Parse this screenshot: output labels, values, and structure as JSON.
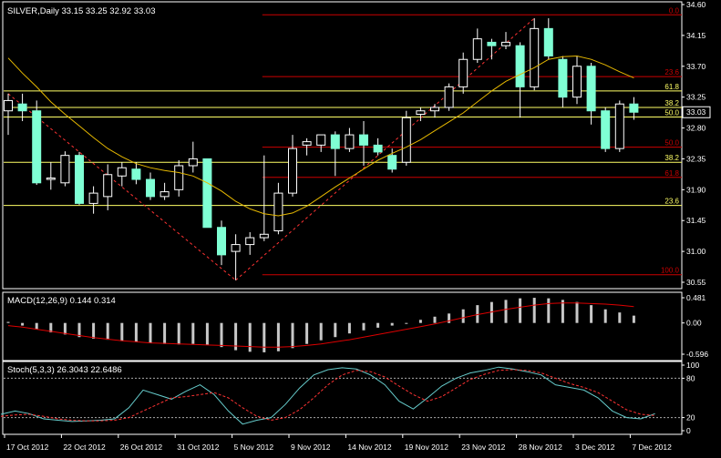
{
  "header": {
    "main_label": "SILVER,Daily  33.15 33.25 32.92 33.03",
    "macd_label": "MACD(12,26,9) 0.144 0.314",
    "stoch_label": "Stoch(5,3,3) 26.3043 22.6486"
  },
  "colors": {
    "background": "#000000",
    "frame": "#ffffff",
    "candle_up": "#ffffff",
    "candle_down": "#7fffd4",
    "ma_line": "#e6b800",
    "fib_red": "#cc0000",
    "fib_yellow": "#ffff66",
    "trend_dashed": "#ff3333",
    "macd_hist": "#c8c8c8",
    "macd_signal": "#dd0000",
    "stoch_main": "#66cccc",
    "stoch_signal": "#ff3333",
    "price_box": "#ffffff",
    "axis_text": "#ffffff"
  },
  "chart_data": [
    {
      "type": "candlestick",
      "symbol": "SILVER",
      "timeframe": "Daily",
      "y_ticks": [
        34.6,
        34.15,
        33.7,
        33.25,
        32.8,
        32.35,
        31.9,
        31.45,
        31.0,
        30.55
      ],
      "y_tick_labels": [
        "34.60",
        "34.15",
        "33.70",
        "33.25",
        "32.80",
        "32.35",
        "31.90",
        "31.45",
        "31.00",
        "30.55"
      ],
      "ylim": [
        30.55,
        34.6
      ],
      "x_labels": [
        "17 Oct 2012",
        "22 Oct 2012",
        "26 Oct 2012",
        "31 Oct 2012",
        "5 Nov 2012",
        "9 Nov 2012",
        "14 Nov 2012",
        "19 Nov 2012",
        "23 Nov 2012",
        "28 Nov 2012",
        "3 Dec 2012",
        "7 Dec 2012"
      ],
      "x_label_index": [
        0,
        4,
        8,
        12,
        16,
        20,
        24,
        28,
        32,
        36,
        40,
        44
      ],
      "current_price": "33.03",
      "candles": [
        {
          "o": 33.05,
          "h": 33.3,
          "l": 32.7,
          "c": 33.2
        },
        {
          "o": 33.15,
          "h": 33.3,
          "l": 32.9,
          "c": 33.05
        },
        {
          "o": 33.05,
          "h": 33.2,
          "l": 31.97,
          "c": 32.0
        },
        {
          "o": 32.05,
          "h": 32.3,
          "l": 31.9,
          "c": 32.07
        },
        {
          "o": 32.0,
          "h": 32.46,
          "l": 31.95,
          "c": 32.4
        },
        {
          "o": 32.4,
          "h": 32.45,
          "l": 31.68,
          "c": 31.7
        },
        {
          "o": 31.7,
          "h": 31.95,
          "l": 31.55,
          "c": 31.85
        },
        {
          "o": 31.8,
          "h": 32.27,
          "l": 31.6,
          "c": 32.12
        },
        {
          "o": 32.1,
          "h": 32.3,
          "l": 31.95,
          "c": 32.22
        },
        {
          "o": 32.2,
          "h": 32.3,
          "l": 31.98,
          "c": 32.05
        },
        {
          "o": 32.05,
          "h": 32.15,
          "l": 31.75,
          "c": 31.8
        },
        {
          "o": 31.8,
          "h": 32.0,
          "l": 31.75,
          "c": 31.87
        },
        {
          "o": 31.9,
          "h": 32.33,
          "l": 31.8,
          "c": 32.25
        },
        {
          "o": 32.25,
          "h": 32.6,
          "l": 32.15,
          "c": 32.35
        },
        {
          "o": 32.35,
          "h": 32.35,
          "l": 31.35,
          "c": 31.35
        },
        {
          "o": 31.35,
          "h": 31.45,
          "l": 30.8,
          "c": 30.95
        },
        {
          "o": 31.0,
          "h": 31.25,
          "l": 30.58,
          "c": 31.1
        },
        {
          "o": 31.1,
          "h": 31.28,
          "l": 30.95,
          "c": 31.2
        },
        {
          "o": 31.2,
          "h": 32.4,
          "l": 31.15,
          "c": 31.25
        },
        {
          "o": 31.3,
          "h": 32.0,
          "l": 31.25,
          "c": 31.85
        },
        {
          "o": 31.85,
          "h": 32.7,
          "l": 31.8,
          "c": 32.5
        },
        {
          "o": 32.55,
          "h": 32.65,
          "l": 32.4,
          "c": 32.6
        },
        {
          "o": 32.55,
          "h": 32.7,
          "l": 32.45,
          "c": 32.7
        },
        {
          "o": 32.7,
          "h": 32.75,
          "l": 32.1,
          "c": 32.5
        },
        {
          "o": 32.5,
          "h": 32.8,
          "l": 32.45,
          "c": 32.7
        },
        {
          "o": 32.7,
          "h": 32.9,
          "l": 32.25,
          "c": 32.55
        },
        {
          "o": 32.55,
          "h": 32.65,
          "l": 32.4,
          "c": 32.45
        },
        {
          "o": 32.4,
          "h": 32.5,
          "l": 32.15,
          "c": 32.2
        },
        {
          "o": 32.3,
          "h": 33.05,
          "l": 32.25,
          "c": 32.95
        },
        {
          "o": 33.0,
          "h": 33.1,
          "l": 32.9,
          "c": 33.05
        },
        {
          "o": 33.05,
          "h": 33.15,
          "l": 32.95,
          "c": 33.1
        },
        {
          "o": 33.1,
          "h": 33.45,
          "l": 33.05,
          "c": 33.4
        },
        {
          "o": 33.4,
          "h": 33.9,
          "l": 33.3,
          "c": 33.8
        },
        {
          "o": 33.8,
          "h": 34.25,
          "l": 33.75,
          "c": 34.1
        },
        {
          "o": 34.05,
          "h": 34.1,
          "l": 33.8,
          "c": 34.0
        },
        {
          "o": 34.0,
          "h": 34.2,
          "l": 33.95,
          "c": 34.05
        },
        {
          "o": 34.0,
          "h": 34.05,
          "l": 32.95,
          "c": 33.4
        },
        {
          "o": 33.4,
          "h": 34.4,
          "l": 33.35,
          "c": 34.25
        },
        {
          "o": 34.25,
          "h": 34.4,
          "l": 33.8,
          "c": 33.85
        },
        {
          "o": 33.8,
          "h": 33.85,
          "l": 33.1,
          "c": 33.25
        },
        {
          "o": 33.25,
          "h": 33.85,
          "l": 33.15,
          "c": 33.7
        },
        {
          "o": 33.7,
          "h": 33.75,
          "l": 32.85,
          "c": 33.05
        },
        {
          "o": 33.05,
          "h": 33.1,
          "l": 32.45,
          "c": 32.5
        },
        {
          "o": 32.5,
          "h": 33.2,
          "l": 32.45,
          "c": 33.15
        },
        {
          "o": 33.15,
          "h": 33.25,
          "l": 32.92,
          "c": 33.03
        }
      ],
      "moving_average": [
        33.82,
        33.6,
        33.4,
        33.18,
        33.0,
        32.83,
        32.66,
        32.5,
        32.38,
        32.28,
        32.22,
        32.18,
        32.15,
        32.1,
        32.0,
        31.88,
        31.73,
        31.62,
        31.55,
        31.52,
        31.56,
        31.66,
        31.8,
        31.94,
        32.07,
        32.2,
        32.33,
        32.43,
        32.52,
        32.63,
        32.76,
        32.89,
        33.02,
        33.18,
        33.34,
        33.48,
        33.58,
        33.68,
        33.8,
        33.84,
        33.85,
        33.8,
        33.72,
        33.62,
        33.53
      ],
      "fib_levels": [
        {
          "label": "0.0",
          "value": 34.45,
          "color": "red",
          "start": 18
        },
        {
          "label": "23.6",
          "value": 33.55,
          "color": "red",
          "start": 18
        },
        {
          "label": "61.8",
          "value": 33.34,
          "color": "yellow",
          "start": 0
        },
        {
          "label": "38.2",
          "value": 33.1,
          "color": "yellow",
          "start": 0
        },
        {
          "label": "50.0",
          "value": 32.96,
          "color": "yellow",
          "start": 0
        },
        {
          "label": "50.0",
          "value": 32.52,
          "color": "red",
          "start": 18
        },
        {
          "label": "38.2",
          "value": 32.3,
          "color": "yellow",
          "start": 0
        },
        {
          "label": "61.8",
          "value": 32.08,
          "color": "red",
          "start": 18
        },
        {
          "label": "23.6",
          "value": 31.67,
          "color": "yellow",
          "start": 0
        },
        {
          "label": "100.0",
          "value": 30.66,
          "color": "red",
          "start": 18
        }
      ],
      "trendlines": [
        {
          "from_index": 0,
          "from_value": 33.3,
          "to_index": 16,
          "to_value": 30.58
        },
        {
          "from_index": 16,
          "from_value": 30.58,
          "to_index": 37,
          "to_value": 34.4
        }
      ]
    },
    {
      "type": "macd",
      "title": "MACD(12,26,9)",
      "y_tick_labels": [
        "0.481",
        "0.00",
        "-0.596"
      ],
      "ylim": [
        -0.596,
        0.481
      ],
      "histogram": [
        0.02,
        -0.05,
        -0.12,
        -0.18,
        -0.22,
        -0.27,
        -0.3,
        -0.32,
        -0.34,
        -0.36,
        -0.38,
        -0.4,
        -0.41,
        -0.4,
        -0.42,
        -0.46,
        -0.52,
        -0.55,
        -0.56,
        -0.54,
        -0.48,
        -0.4,
        -0.33,
        -0.27,
        -0.2,
        -0.14,
        -0.09,
        -0.05,
        0.0,
        0.06,
        0.12,
        0.18,
        0.26,
        0.34,
        0.4,
        0.44,
        0.47,
        0.48,
        0.47,
        0.44,
        0.4,
        0.34,
        0.26,
        0.2,
        0.14
      ],
      "signal": [
        -0.05,
        -0.08,
        -0.12,
        -0.16,
        -0.2,
        -0.24,
        -0.28,
        -0.31,
        -0.34,
        -0.36,
        -0.38,
        -0.39,
        -0.4,
        -0.41,
        -0.42,
        -0.43,
        -0.44,
        -0.45,
        -0.46,
        -0.46,
        -0.45,
        -0.43,
        -0.4,
        -0.36,
        -0.32,
        -0.27,
        -0.22,
        -0.17,
        -0.12,
        -0.07,
        -0.02,
        0.04,
        0.1,
        0.16,
        0.21,
        0.26,
        0.3,
        0.34,
        0.37,
        0.38,
        0.38,
        0.37,
        0.36,
        0.34,
        0.31
      ]
    },
    {
      "type": "stochastic",
      "title": "Stoch(5,3,3)",
      "y_tick_labels": [
        "100",
        "80",
        "20",
        "0"
      ],
      "ylim": [
        0,
        100
      ],
      "levels": [
        80,
        20
      ],
      "main": [
        25,
        30,
        26,
        18,
        16,
        14,
        15,
        16,
        18,
        35,
        62,
        55,
        48,
        60,
        70,
        55,
        30,
        10,
        16,
        20,
        40,
        65,
        85,
        93,
        96,
        94,
        85,
        70,
        45,
        33,
        50,
        68,
        80,
        88,
        92,
        97,
        94,
        90,
        85,
        70,
        66,
        62,
        50,
        30,
        20,
        18,
        26
      ],
      "signal": [
        22,
        24,
        25,
        22,
        18,
        16,
        15,
        15,
        16,
        20,
        30,
        40,
        50,
        52,
        55,
        58,
        50,
        35,
        22,
        16,
        20,
        32,
        50,
        70,
        85,
        92,
        90,
        82,
        68,
        55,
        45,
        52,
        65,
        78,
        86,
        92,
        93,
        92,
        88,
        80,
        72,
        66,
        58,
        45,
        32,
        25,
        23
      ]
    }
  ]
}
